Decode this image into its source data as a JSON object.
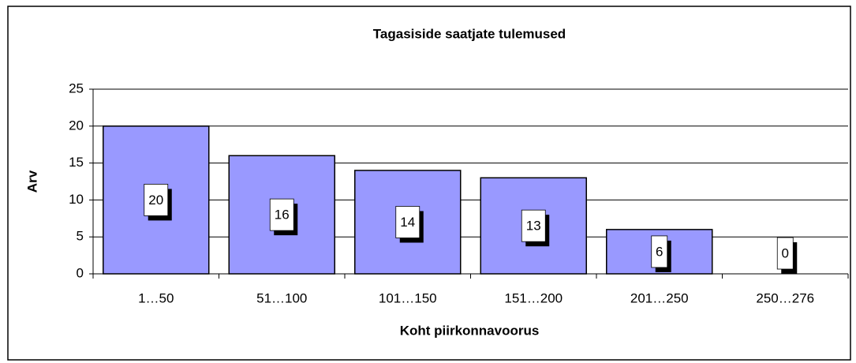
{
  "chart_data": {
    "type": "bar",
    "title": "Tagasiside saatjate tulemused",
    "x_label": "Koht piirkonnavoorus",
    "y_label": "Arv",
    "categories": [
      "1…50",
      "51…100",
      "101…150",
      "151…200",
      "201…250",
      "250…276"
    ],
    "values": [
      20,
      16,
      14,
      13,
      6,
      0
    ],
    "color": "#9999ff",
    "ylim": [
      0,
      25
    ],
    "yticks": [
      0,
      5,
      10,
      15,
      20,
      25
    ],
    "grid": true
  }
}
